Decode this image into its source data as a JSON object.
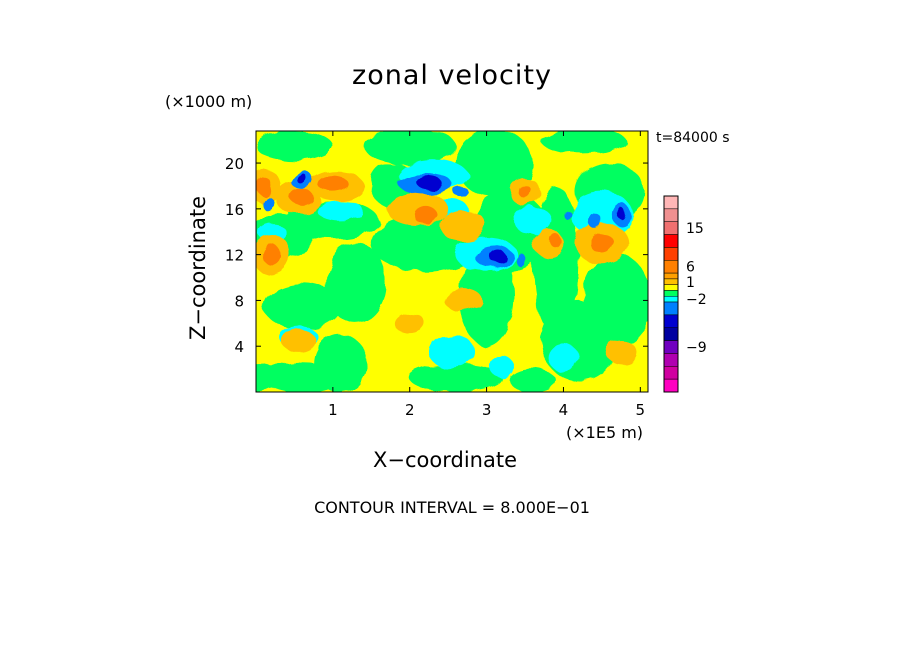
{
  "chart_data": {
    "type": "heatmap",
    "title": "zonal velocity",
    "xlabel": "X−coordinate",
    "ylabel": "Z−coordinate",
    "x_unit_label": "(×1E5 m)",
    "y_unit_label": "(×1000 m)",
    "time_label": "t=84000 s",
    "footer": "CONTOUR INTERVAL = 8.000E−01",
    "xlim": [
      0,
      5.1
    ],
    "ylim": [
      0,
      22.8
    ],
    "x_ticks": [
      1,
      2,
      3,
      4,
      5
    ],
    "x_tick_labels": [
      "1",
      "2",
      "3",
      "4",
      "5"
    ],
    "y_ticks": [
      4,
      8,
      12,
      16,
      20
    ],
    "y_tick_labels": [
      "4",
      "8",
      "12",
      "16",
      "20"
    ],
    "colorbar": {
      "tick_labels": [
        "15",
        "6",
        "1",
        "−2",
        "−9"
      ],
      "tick_values": [
        15,
        6,
        1,
        -2,
        -9
      ],
      "colors_top_to_bottom": [
        "#ffb6b6",
        "#f09090",
        "#f07070",
        "#ff0000",
        "#ff4000",
        "#ff8000",
        "#ffa000",
        "#ffc000",
        "#ffff00",
        "#00ff60",
        "#00ffff",
        "#0080ff",
        "#0000d0",
        "#0000a0",
        "#7000c0",
        "#b000b0",
        "#d000a0",
        "#ff00c0"
      ]
    },
    "background_level": "#ffff00",
    "regions": [
      {
        "level": "#00ff60",
        "x": 0.05,
        "z": 1.2,
        "rx": 0.25,
        "rz": 1.2
      },
      {
        "level": "#00ff60",
        "x": 0.6,
        "z": 1.3,
        "rx": 0.5,
        "rz": 1.3
      },
      {
        "level": "#00ff60",
        "x": 1.1,
        "z": 2.5,
        "rx": 0.35,
        "rz": 2.5
      },
      {
        "level": "#00ff60",
        "x": 2.6,
        "z": 1.2,
        "rx": 0.6,
        "rz": 1.2
      },
      {
        "level": "#00ff60",
        "x": 3.6,
        "z": 1.0,
        "rx": 0.3,
        "rz": 1.0
      },
      {
        "level": "#00ff60",
        "x": 4.2,
        "z": 4.5,
        "rx": 0.5,
        "rz": 3.5
      },
      {
        "level": "#00ff60",
        "x": 4.7,
        "z": 8.0,
        "rx": 0.45,
        "rz": 4.0
      },
      {
        "level": "#00ff60",
        "x": 0.6,
        "z": 7.5,
        "rx": 0.5,
        "rz": 2.0
      },
      {
        "level": "#00ff60",
        "x": 1.3,
        "z": 9.5,
        "rx": 0.4,
        "rz": 3.5
      },
      {
        "level": "#00ff60",
        "x": 2.2,
        "z": 13.0,
        "rx": 0.7,
        "rz": 2.5
      },
      {
        "level": "#00ff60",
        "x": 3.0,
        "z": 8.5,
        "rx": 0.35,
        "rz": 4.5
      },
      {
        "level": "#00ff60",
        "x": 3.3,
        "z": 14.0,
        "rx": 0.5,
        "rz": 3.5
      },
      {
        "level": "#00ff60",
        "x": 3.9,
        "z": 11.5,
        "rx": 0.3,
        "rz": 6.5
      },
      {
        "level": "#00ff60",
        "x": 0.3,
        "z": 13.5,
        "rx": 0.4,
        "rz": 2.0
      },
      {
        "level": "#00ff60",
        "x": 1.0,
        "z": 15.0,
        "rx": 0.6,
        "rz": 1.6
      },
      {
        "level": "#00ff60",
        "x": 0.5,
        "z": 21.5,
        "rx": 0.5,
        "rz": 1.3
      },
      {
        "level": "#00ff60",
        "x": 2.0,
        "z": 21.5,
        "rx": 0.6,
        "rz": 1.6
      },
      {
        "level": "#00ff60",
        "x": 3.1,
        "z": 20.0,
        "rx": 0.5,
        "rz": 3.0
      },
      {
        "level": "#00ff60",
        "x": 4.25,
        "z": 22.0,
        "rx": 0.55,
        "rz": 1.2
      },
      {
        "level": "#00ff60",
        "x": 4.6,
        "z": 17.5,
        "rx": 0.45,
        "rz": 2.5
      },
      {
        "level": "#00ff60",
        "x": 1.8,
        "z": 18.0,
        "rx": 0.3,
        "rz": 2.0
      },
      {
        "level": "#00ffff",
        "x": 0.55,
        "z": 4.8,
        "rx": 0.25,
        "rz": 1.0
      },
      {
        "level": "#00ffff",
        "x": 2.55,
        "z": 3.5,
        "rx": 0.3,
        "rz": 1.5
      },
      {
        "level": "#00ffff",
        "x": 3.2,
        "z": 2.2,
        "rx": 0.15,
        "rz": 1.0
      },
      {
        "level": "#00ffff",
        "x": 1.1,
        "z": 15.8,
        "rx": 0.3,
        "rz": 0.9
      },
      {
        "level": "#00ffff",
        "x": 0.2,
        "z": 14.0,
        "rx": 0.18,
        "rz": 0.8
      },
      {
        "level": "#00ffff",
        "x": 2.3,
        "z": 19.0,
        "rx": 0.45,
        "rz": 1.3
      },
      {
        "level": "#00ffff",
        "x": 3.0,
        "z": 12.0,
        "rx": 0.4,
        "rz": 1.5
      },
      {
        "level": "#00ffff",
        "x": 4.5,
        "z": 15.5,
        "rx": 0.4,
        "rz": 2.0
      },
      {
        "level": "#00ffff",
        "x": 3.6,
        "z": 15.0,
        "rx": 0.25,
        "rz": 1.2
      },
      {
        "level": "#00ffff",
        "x": 4.0,
        "z": 3.0,
        "rx": 0.2,
        "rz": 1.2
      },
      {
        "level": "#00ffff",
        "x": 2.55,
        "z": 16.0,
        "rx": 0.2,
        "rz": 0.9
      },
      {
        "level": "#ffc000",
        "x": 0.1,
        "z": 18.0,
        "rx": 0.22,
        "rz": 1.5
      },
      {
        "level": "#ffc000",
        "x": 0.55,
        "z": 17.0,
        "rx": 0.3,
        "rz": 1.5
      },
      {
        "level": "#ffc000",
        "x": 1.05,
        "z": 18.0,
        "rx": 0.35,
        "rz": 1.3
      },
      {
        "level": "#ffc000",
        "x": 0.2,
        "z": 12.0,
        "rx": 0.25,
        "rz": 1.8
      },
      {
        "level": "#ffc000",
        "x": 2.1,
        "z": 16.0,
        "rx": 0.4,
        "rz": 1.5
      },
      {
        "level": "#ffc000",
        "x": 2.7,
        "z": 14.5,
        "rx": 0.3,
        "rz": 1.4
      },
      {
        "level": "#ffc000",
        "x": 2.7,
        "z": 8.0,
        "rx": 0.25,
        "rz": 1.0
      },
      {
        "level": "#ffc000",
        "x": 2.0,
        "z": 6.0,
        "rx": 0.2,
        "rz": 0.9
      },
      {
        "level": "#ffc000",
        "x": 0.55,
        "z": 4.5,
        "rx": 0.22,
        "rz": 1.0
      },
      {
        "level": "#ffc000",
        "x": 4.5,
        "z": 13.0,
        "rx": 0.35,
        "rz": 1.8
      },
      {
        "level": "#ffc000",
        "x": 3.8,
        "z": 13.0,
        "rx": 0.2,
        "rz": 1.2
      },
      {
        "level": "#ffc000",
        "x": 3.5,
        "z": 17.5,
        "rx": 0.2,
        "rz": 1.2
      },
      {
        "level": "#ffc000",
        "x": 4.75,
        "z": 3.5,
        "rx": 0.2,
        "rz": 1.0
      },
      {
        "level": "#ff8000",
        "x": 0.1,
        "z": 18.0,
        "rx": 0.1,
        "rz": 0.8
      },
      {
        "level": "#ff8000",
        "x": 0.2,
        "z": 12.0,
        "rx": 0.12,
        "rz": 0.9
      },
      {
        "level": "#ff8000",
        "x": 1.0,
        "z": 18.2,
        "rx": 0.2,
        "rz": 0.7
      },
      {
        "level": "#ff8000",
        "x": 0.6,
        "z": 17.0,
        "rx": 0.15,
        "rz": 0.7
      },
      {
        "level": "#ff8000",
        "x": 2.2,
        "z": 15.5,
        "rx": 0.15,
        "rz": 0.8
      },
      {
        "level": "#ff8000",
        "x": 4.5,
        "z": 13.0,
        "rx": 0.15,
        "rz": 0.9
      },
      {
        "level": "#ff8000",
        "x": 3.5,
        "z": 17.5,
        "rx": 0.08,
        "rz": 0.6
      },
      {
        "level": "#ff8000",
        "x": 3.9,
        "z": 13.2,
        "rx": 0.07,
        "rz": 0.6
      },
      {
        "level": "#0080ff",
        "x": 0.6,
        "z": 18.5,
        "rx": 0.15,
        "rz": 0.8
      },
      {
        "level": "#0080ff",
        "x": 0.15,
        "z": 16.5,
        "rx": 0.08,
        "rz": 0.6
      },
      {
        "level": "#0080ff",
        "x": 2.2,
        "z": 18.2,
        "rx": 0.35,
        "rz": 0.9
      },
      {
        "level": "#0080ff",
        "x": 3.1,
        "z": 11.8,
        "rx": 0.25,
        "rz": 1.0
      },
      {
        "level": "#0080ff",
        "x": 4.75,
        "z": 15.5,
        "rx": 0.12,
        "rz": 1.0
      },
      {
        "level": "#0080ff",
        "x": 4.4,
        "z": 15.0,
        "rx": 0.08,
        "rz": 0.7
      },
      {
        "level": "#0080ff",
        "x": 4.05,
        "z": 15.5,
        "rx": 0.05,
        "rz": 0.4
      },
      {
        "level": "#0080ff",
        "x": 3.45,
        "z": 11.5,
        "rx": 0.06,
        "rz": 0.6
      },
      {
        "level": "#0080ff",
        "x": 2.65,
        "z": 17.6,
        "rx": 0.1,
        "rz": 0.4
      },
      {
        "level": "#0000d0",
        "x": 2.25,
        "z": 18.3,
        "rx": 0.16,
        "rz": 0.6
      },
      {
        "level": "#0000d0",
        "x": 3.15,
        "z": 11.8,
        "rx": 0.1,
        "rz": 0.6
      },
      {
        "level": "#0000d0",
        "x": 0.6,
        "z": 18.6,
        "rx": 0.07,
        "rz": 0.45
      },
      {
        "level": "#0000d0",
        "x": 4.75,
        "z": 15.6,
        "rx": 0.05,
        "rz": 0.5
      }
    ]
  }
}
